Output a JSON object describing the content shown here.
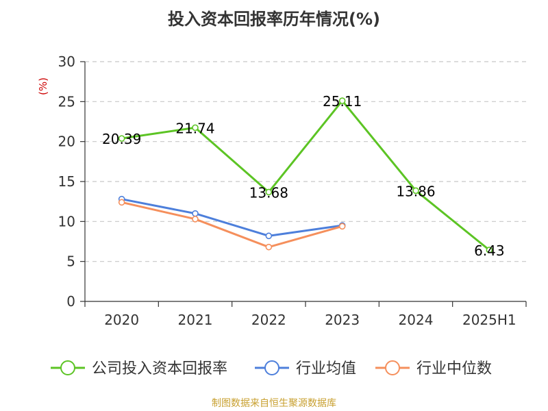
{
  "title": "投入资本回报率历年情况(%)",
  "source": "制图数据来自恒生聚源数据库",
  "chart_data": {
    "type": "line",
    "title": "投入资本回报率历年情况(%)",
    "ylabel": "(%)",
    "xlabel": "",
    "categories": [
      "2020",
      "2021",
      "2022",
      "2023",
      "2024",
      "2025H1"
    ],
    "ylim": [
      0,
      30
    ],
    "yticks": [
      0,
      5,
      10,
      15,
      20,
      25,
      30
    ],
    "grid": true,
    "legend_position": "bottom",
    "series": [
      {
        "name": "公司投入资本回报率",
        "color": "#5cc424",
        "values": [
          20.39,
          21.74,
          13.68,
          25.11,
          13.86,
          6.43
        ],
        "labels": true
      },
      {
        "name": "行业均值",
        "color": "#4d7fdb",
        "values": [
          12.8,
          11.0,
          8.2,
          9.5,
          null,
          null
        ],
        "labels": false
      },
      {
        "name": "行业中位数",
        "color": "#f58f5c",
        "values": [
          12.4,
          10.3,
          6.8,
          9.4,
          null,
          null
        ],
        "labels": false
      }
    ]
  }
}
